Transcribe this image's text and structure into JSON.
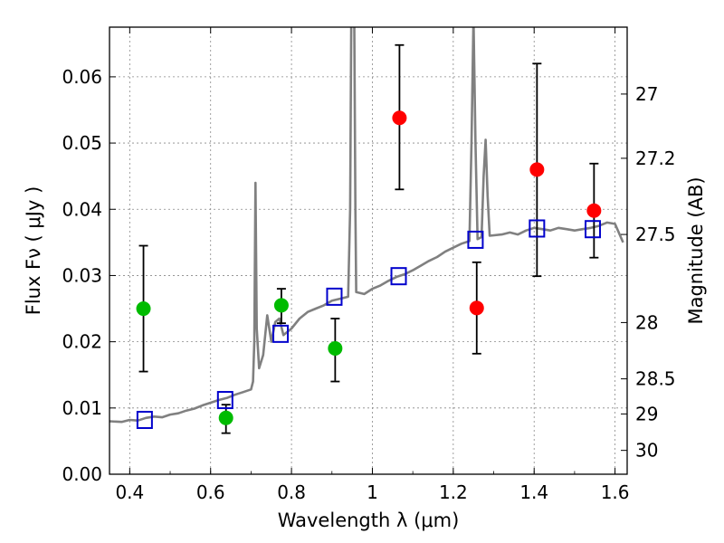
{
  "chart_data": {
    "type": "scatter",
    "xlabel": "Wavelength  λ (μm)",
    "ylabel": "Flux  Fν  ( μJy )",
    "ylabel_right": "Magnitude (AB)",
    "xlim": [
      0.35,
      1.63
    ],
    "ylim": [
      0.0,
      0.0675
    ],
    "grid": true,
    "x_ticks": [
      0.4,
      0.6,
      0.8,
      1.0,
      1.2,
      1.4,
      1.6
    ],
    "x_tick_labels": [
      "0.4",
      "0.6",
      "0.8",
      "1",
      "1.2",
      "1.4",
      "1.6"
    ],
    "y_ticks": [
      0.0,
      0.01,
      0.02,
      0.03,
      0.04,
      0.05,
      0.06
    ],
    "y_tick_labels": [
      "0.00",
      "0.01",
      "0.02",
      "0.03",
      "0.04",
      "0.05",
      "0.06"
    ],
    "right_ticks": [
      {
        "label": "27",
        "flux": 0.0574
      },
      {
        "label": "27.2",
        "flux": 0.0477
      },
      {
        "label": "27.5",
        "flux": 0.0362
      },
      {
        "label": "28",
        "flux": 0.0229
      },
      {
        "label": "28.5",
        "flux": 0.0144
      },
      {
        "label": "29",
        "flux": 0.0091
      },
      {
        "label": "30",
        "flux": 0.0036
      }
    ],
    "colors": {
      "spectrum": "#808080",
      "model_box": "#0000cc",
      "green_point": "#00bb00",
      "red_point": "#ff0000",
      "error_bar": "#000000",
      "grid": "#888888"
    },
    "series": [
      {
        "marker": "line",
        "points": [
          [
            0.35,
            0.008
          ],
          [
            0.38,
            0.0079
          ],
          [
            0.4,
            0.0082
          ],
          [
            0.42,
            0.0081
          ],
          [
            0.44,
            0.0085
          ],
          [
            0.46,
            0.0087
          ],
          [
            0.48,
            0.0086
          ],
          [
            0.5,
            0.009
          ],
          [
            0.52,
            0.0092
          ],
          [
            0.54,
            0.0096
          ],
          [
            0.56,
            0.0099
          ],
          [
            0.58,
            0.0104
          ],
          [
            0.6,
            0.0108
          ],
          [
            0.62,
            0.0112
          ],
          [
            0.64,
            0.0115
          ],
          [
            0.66,
            0.012
          ],
          [
            0.68,
            0.0124
          ],
          [
            0.7,
            0.0128
          ],
          [
            0.705,
            0.014
          ],
          [
            0.708,
            0.02
          ],
          [
            0.711,
            0.044
          ],
          [
            0.714,
            0.022
          ],
          [
            0.72,
            0.016
          ],
          [
            0.73,
            0.018
          ],
          [
            0.74,
            0.024
          ],
          [
            0.75,
            0.02
          ],
          [
            0.76,
            0.023
          ],
          [
            0.77,
            0.0235
          ],
          [
            0.78,
            0.021
          ],
          [
            0.8,
            0.022
          ],
          [
            0.82,
            0.0235
          ],
          [
            0.84,
            0.0245
          ],
          [
            0.86,
            0.025
          ],
          [
            0.88,
            0.0255
          ],
          [
            0.9,
            0.0262
          ],
          [
            0.92,
            0.0265
          ],
          [
            0.94,
            0.0268
          ],
          [
            0.945,
            0.04
          ],
          [
            0.948,
            0.07
          ],
          [
            0.955,
            0.07
          ],
          [
            0.958,
            0.04
          ],
          [
            0.96,
            0.0275
          ],
          [
            0.98,
            0.0272
          ],
          [
            1.0,
            0.028
          ],
          [
            1.02,
            0.0285
          ],
          [
            1.04,
            0.0292
          ],
          [
            1.06,
            0.0298
          ],
          [
            1.08,
            0.0302
          ],
          [
            1.1,
            0.0308
          ],
          [
            1.12,
            0.0315
          ],
          [
            1.14,
            0.0322
          ],
          [
            1.16,
            0.0328
          ],
          [
            1.18,
            0.0336
          ],
          [
            1.2,
            0.0342
          ],
          [
            1.22,
            0.0348
          ],
          [
            1.24,
            0.0352
          ],
          [
            1.245,
            0.05
          ],
          [
            1.25,
            0.069
          ],
          [
            1.255,
            0.05
          ],
          [
            1.26,
            0.0355
          ],
          [
            1.27,
            0.0358
          ],
          [
            1.275,
            0.045
          ],
          [
            1.28,
            0.0505
          ],
          [
            1.285,
            0.042
          ],
          [
            1.29,
            0.036
          ],
          [
            1.32,
            0.0362
          ],
          [
            1.34,
            0.0365
          ],
          [
            1.36,
            0.0362
          ],
          [
            1.38,
            0.0368
          ],
          [
            1.4,
            0.0372
          ],
          [
            1.42,
            0.037
          ],
          [
            1.44,
            0.0368
          ],
          [
            1.46,
            0.0372
          ],
          [
            1.48,
            0.037
          ],
          [
            1.5,
            0.0368
          ],
          [
            1.52,
            0.037
          ],
          [
            1.54,
            0.0372
          ],
          [
            1.56,
            0.0375
          ],
          [
            1.58,
            0.038
          ],
          [
            1.6,
            0.0378
          ],
          [
            1.62,
            0.035
          ]
        ]
      },
      {
        "marker": "open-square",
        "points": [
          [
            0.437,
            0.0082
          ],
          [
            0.636,
            0.0112
          ],
          [
            0.773,
            0.0212
          ],
          [
            0.906,
            0.0268
          ],
          [
            1.065,
            0.0299
          ],
          [
            1.255,
            0.0354
          ],
          [
            1.407,
            0.0371
          ],
          [
            1.545,
            0.037
          ]
        ]
      },
      {
        "marker": "filled-circle",
        "color": "green",
        "points": [
          {
            "x": 0.434,
            "y": 0.025,
            "err_lo": 0.0155,
            "err_hi": 0.0345
          },
          {
            "x": 0.638,
            "y": 0.0085,
            "err_lo": 0.0062,
            "err_hi": 0.0105
          },
          {
            "x": 0.775,
            "y": 0.0255,
            "err_lo": 0.0228,
            "err_hi": 0.028
          },
          {
            "x": 0.908,
            "y": 0.019,
            "err_lo": 0.014,
            "err_hi": 0.0235
          }
        ]
      },
      {
        "marker": "filled-circle",
        "color": "red",
        "points": [
          {
            "x": 1.067,
            "y": 0.0538,
            "err_lo": 0.043,
            "err_hi": 0.0648
          },
          {
            "x": 1.258,
            "y": 0.0251,
            "err_lo": 0.0182,
            "err_hi": 0.032
          },
          {
            "x": 1.407,
            "y": 0.046,
            "err_lo": 0.0299,
            "err_hi": 0.062
          },
          {
            "x": 1.548,
            "y": 0.0398,
            "err_lo": 0.0327,
            "err_hi": 0.0469
          }
        ]
      }
    ]
  }
}
